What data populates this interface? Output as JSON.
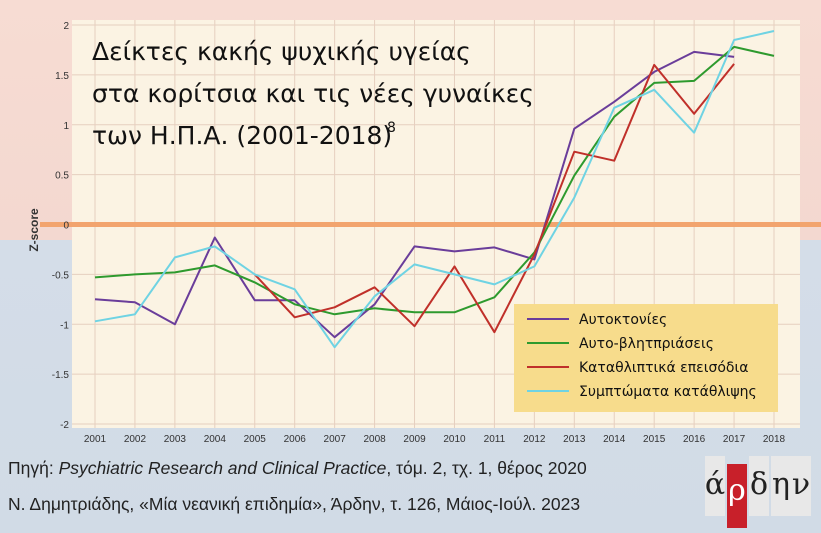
{
  "chart_data": {
    "type": "line",
    "title": "Δείκτες κακής ψυχικής υγείας στα κορίτσια και τις νέες γυναίκες των Η.Π.Α. (2001-2018)⁸",
    "title_lines": [
      "Δείκτες κακής ψυχικής υγείας",
      "στα κορίτσια και τις νέες γυναίκες",
      "των Η.Π.Α. (2001-2018)"
    ],
    "title_superscript": "8",
    "xlabel": "",
    "ylabel": "Z-score",
    "x": [
      2001,
      2002,
      2003,
      2004,
      2005,
      2006,
      2007,
      2008,
      2009,
      2010,
      2011,
      2012,
      2013,
      2014,
      2015,
      2016,
      2017,
      2018
    ],
    "ylim": [
      -2,
      2
    ],
    "yticks": [
      -2,
      -1.5,
      -1,
      -0.5,
      0,
      0.5,
      1,
      1.5,
      2
    ],
    "grid": true,
    "legend_position": "bottom-right",
    "series": [
      {
        "name": "Αυτοκτονίες",
        "color": "#6a3d9a",
        "values": [
          -0.75,
          -0.78,
          -1.0,
          -0.13,
          -0.76,
          -0.76,
          -1.13,
          -0.8,
          -0.22,
          -0.27,
          -0.23,
          -0.35,
          0.96,
          1.23,
          1.53,
          1.73,
          1.68,
          null
        ]
      },
      {
        "name": "Αυτο-βλητπριάσεις",
        "color": "#2e9a2e",
        "values": [
          -0.53,
          -0.5,
          -0.48,
          -0.41,
          -0.58,
          -0.8,
          -0.9,
          -0.84,
          -0.88,
          -0.88,
          -0.73,
          -0.28,
          0.49,
          1.08,
          1.42,
          1.44,
          1.78,
          1.69
        ]
      },
      {
        "name": "Καταθλιπτικά επεισόδια",
        "color": "#c0302a",
        "values": [
          null,
          null,
          null,
          null,
          -0.5,
          -0.93,
          -0.83,
          -0.63,
          -1.02,
          -0.42,
          -1.08,
          -0.3,
          0.73,
          0.64,
          1.6,
          1.11,
          1.61,
          null
        ]
      },
      {
        "name": "Συμπτώματα κατάθλιψης",
        "color": "#6fd3e3",
        "values": [
          -0.97,
          -0.9,
          -0.33,
          -0.22,
          -0.5,
          -0.65,
          -1.23,
          -0.72,
          -0.4,
          -0.5,
          -0.6,
          -0.42,
          0.27,
          1.17,
          1.35,
          0.92,
          1.85,
          1.94
        ]
      }
    ],
    "colors": {
      "plot_background": "#fbf3e3",
      "zero_line": "#f2a46e",
      "grid": "#e6cfbf",
      "legend_background": "#f7dc8c"
    }
  },
  "legend": {
    "items": [
      "Αυτοκτονίες",
      "Αυτο-βλητπριάσεις",
      "Καταθλιπτικά επεισόδια",
      "Συμπτώματα κατάθλιψης"
    ]
  },
  "footer": {
    "line1_prefix": "Πηγή: ",
    "line1_journal": "Psychiatric Research and Clinical Practice",
    "line1_suffix": ", τόμ. 2, τχ. 1, θέρος 2020",
    "line2": "Ν. Δημητριάδης, «Μία νεανική επιδημία», Άρδην, τ. 126, Μάιος-Ιούλ. 2023"
  },
  "logo": {
    "letters": [
      "ά",
      "ρ",
      "δ",
      "η",
      "ν"
    ],
    "highlight_color": "#c8202a"
  }
}
